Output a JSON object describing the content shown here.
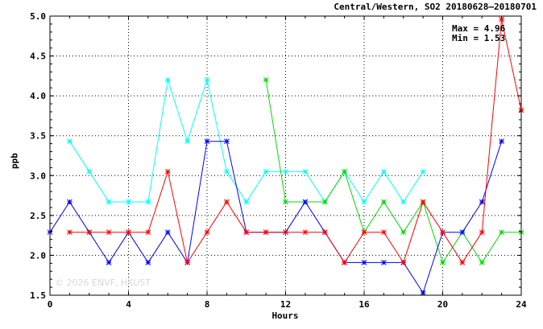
{
  "chart_data": {
    "type": "line",
    "title": "Central/Western, SO2 20180628–20180701",
    "stats": {
      "max_label": "Max = 4.96",
      "min_label": "Min = 1.53"
    },
    "watermark": "© 2026  ENVF, HKUST",
    "xlabel": "Hours",
    "ylabel": "ppb",
    "xlim": [
      0,
      24
    ],
    "ylim": [
      1.5,
      5.0
    ],
    "x_ticks": [
      0,
      4,
      8,
      12,
      16,
      20,
      24
    ],
    "y_ticks": [
      1.5,
      2.0,
      2.5,
      3.0,
      3.5,
      4.0,
      4.5,
      5.0
    ],
    "y_tick_labels": [
      "1.5",
      "2.0",
      "2.5",
      "3.0",
      "3.5",
      "4.0",
      "4.5",
      "5.0"
    ],
    "grid": true,
    "series": [
      {
        "color": "#00ffff",
        "points": [
          [
            1,
            3.43
          ],
          [
            2,
            3.05
          ],
          [
            3,
            2.67
          ],
          [
            4,
            2.67
          ],
          [
            5,
            2.67
          ],
          [
            6,
            4.2
          ],
          [
            7,
            3.43
          ],
          [
            8,
            4.2
          ],
          [
            9,
            3.05
          ],
          [
            10,
            2.67
          ],
          [
            11,
            3.05
          ],
          [
            12,
            3.05
          ],
          [
            13,
            3.05
          ],
          [
            14,
            2.67
          ],
          [
            15,
            3.05
          ],
          [
            16,
            2.67
          ],
          [
            17,
            3.05
          ],
          [
            18,
            2.67
          ],
          [
            19,
            3.05
          ]
        ]
      },
      {
        "color": "#00dd00",
        "points": [
          [
            11,
            4.2
          ],
          [
            12,
            2.67
          ],
          [
            13,
            2.67
          ],
          [
            14,
            2.67
          ],
          [
            15,
            3.05
          ],
          [
            16,
            2.29
          ],
          [
            17,
            2.67
          ],
          [
            18,
            2.29
          ],
          [
            19,
            2.67
          ],
          [
            20,
            1.91
          ],
          [
            21,
            2.29
          ],
          [
            22,
            1.91
          ],
          [
            23,
            2.29
          ],
          [
            24,
            2.29
          ]
        ]
      },
      {
        "color": "#0000ff",
        "points": [
          [
            0,
            2.29
          ],
          [
            1,
            2.67
          ],
          [
            2,
            2.29
          ],
          [
            3,
            1.91
          ],
          [
            4,
            2.29
          ],
          [
            5,
            1.91
          ],
          [
            6,
            2.29
          ],
          [
            7,
            1.91
          ],
          [
            8,
            3.43
          ],
          [
            9,
            3.43
          ],
          [
            10,
            2.29
          ],
          [
            11,
            2.29
          ],
          [
            12,
            2.29
          ],
          [
            13,
            2.67
          ],
          [
            14,
            2.29
          ],
          [
            15,
            1.91
          ],
          [
            16,
            1.91
          ],
          [
            17,
            1.91
          ],
          [
            18,
            1.91
          ],
          [
            19,
            1.53
          ],
          [
            20,
            2.29
          ],
          [
            21,
            2.29
          ],
          [
            22,
            2.67
          ],
          [
            23,
            3.43
          ]
        ]
      },
      {
        "color": "#ff0000",
        "points": [
          [
            1,
            2.29
          ],
          [
            2,
            2.29
          ],
          [
            3,
            2.29
          ],
          [
            4,
            2.29
          ],
          [
            5,
            2.29
          ],
          [
            6,
            3.05
          ],
          [
            7,
            1.91
          ],
          [
            8,
            2.29
          ],
          [
            9,
            2.67
          ],
          [
            10,
            2.29
          ],
          [
            11,
            2.29
          ],
          [
            12,
            2.29
          ],
          [
            13,
            2.29
          ],
          [
            14,
            2.29
          ],
          [
            15,
            1.91
          ],
          [
            16,
            2.29
          ],
          [
            17,
            2.29
          ],
          [
            18,
            1.91
          ],
          [
            19,
            2.67
          ],
          [
            20,
            2.29
          ],
          [
            21,
            1.91
          ],
          [
            22,
            2.29
          ],
          [
            23,
            4.96
          ],
          [
            24,
            3.82
          ]
        ]
      }
    ]
  }
}
